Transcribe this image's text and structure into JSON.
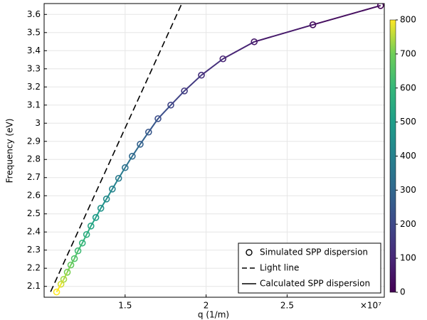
{
  "chart_data": {
    "type": "line",
    "x_label": "q (1/m)",
    "y_label": "Frequency (eV)",
    "x_multiplier": "×10⁷",
    "xlim": [
      1.0,
      3.1
    ],
    "ylim": [
      2.04,
      3.66
    ],
    "xticks": [
      1.5,
      2,
      2.5
    ],
    "yticks": [
      2.1,
      2.2,
      2.3,
      2.4,
      2.5,
      2.6,
      2.7,
      2.8,
      2.9,
      3,
      3.1,
      3.2,
      3.3,
      3.4,
      3.5,
      3.6
    ],
    "grid": true,
    "colormap": "viridis",
    "clim": [
      0,
      800
    ],
    "cticks": [
      0,
      100,
      200,
      300,
      400,
      500,
      600,
      700,
      800
    ],
    "legend": "lower right",
    "series": [
      {
        "name": "Simulated SPP dispersion",
        "marker": "circle",
        "x": [
          1.077,
          1.104,
          1.121,
          1.143,
          1.165,
          1.187,
          1.209,
          1.236,
          1.262,
          1.289,
          1.319,
          1.35,
          1.385,
          1.421,
          1.46,
          1.5,
          1.544,
          1.593,
          1.645,
          1.703,
          1.782,
          1.866,
          1.971,
          2.104,
          2.297,
          2.659,
          3.077
        ],
        "values": [
          2.069,
          2.112,
          2.139,
          2.178,
          2.218,
          2.253,
          2.296,
          2.339,
          2.386,
          2.433,
          2.48,
          2.531,
          2.582,
          2.637,
          2.696,
          2.755,
          2.818,
          2.884,
          2.951,
          3.025,
          3.1,
          3.178,
          3.265,
          3.355,
          3.449,
          3.543,
          3.649
        ],
        "color_values": [
          800,
          769,
          738,
          708,
          677,
          646,
          615,
          585,
          554,
          523,
          492,
          462,
          431,
          400,
          369,
          338,
          308,
          277,
          246,
          215,
          185,
          154,
          123,
          92,
          62,
          31,
          0
        ]
      },
      {
        "name": "Light line",
        "color": "#000000",
        "dash": true,
        "x": [
          1.04,
          1.85
        ],
        "values": [
          2.07,
          3.66
        ]
      },
      {
        "name": "Calculated SPP dispersion",
        "color": "#000000",
        "x": [
          1.077,
          1.104,
          1.121,
          1.143,
          1.165,
          1.187,
          1.209,
          1.236,
          1.262,
          1.289,
          1.319,
          1.35,
          1.385,
          1.421,
          1.46,
          1.5,
          1.544,
          1.593,
          1.645,
          1.703,
          1.782,
          1.866,
          1.971,
          2.104,
          2.297,
          2.659,
          3.077
        ],
        "values": [
          2.069,
          2.112,
          2.139,
          2.178,
          2.218,
          2.253,
          2.296,
          2.339,
          2.386,
          2.433,
          2.48,
          2.531,
          2.582,
          2.637,
          2.696,
          2.755,
          2.818,
          2.884,
          2.951,
          3.025,
          3.1,
          3.178,
          3.265,
          3.355,
          3.449,
          3.543,
          3.649
        ],
        "color_values": [
          800,
          769,
          738,
          708,
          677,
          646,
          615,
          585,
          554,
          523,
          492,
          462,
          431,
          400,
          369,
          338,
          308,
          277,
          246,
          215,
          185,
          154,
          123,
          92,
          62,
          31,
          0
        ]
      }
    ]
  }
}
